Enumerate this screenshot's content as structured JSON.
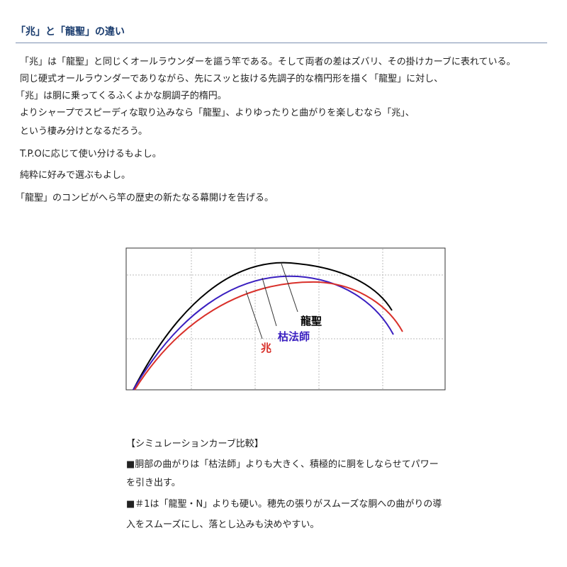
{
  "heading": "「兆」と「龍聖」の違い",
  "paragraphs": [
    "「兆」は「龍聖」と同じくオールラウンダーを謳う竿である。そして両者の差はズバリ、その掛けカーブに表れている。",
    "同じ硬式オールラウンダーでありながら、先にスッと抜ける先調子的な楕円形を描く「龍聖」に対し、",
    "「兆」は胴に乗ってくるふくよかな胴調子的楕円。",
    "よりシャープでスピーディな取り込みなら「龍聖」、よりゆったりと曲がりを楽しむなら「兆」、",
    "という棲み分けとなるだろう。",
    "T.P.Oに応じて使い分けるもよし。",
    "純粋に好みで選ぶもよし。",
    "「龍聖」のコンビがへら竿の歴史の新たなる幕開けを告げる。"
  ],
  "diagram": {
    "labels": [
      "龍聖",
      "枯法師",
      "兆"
    ]
  },
  "notes": {
    "title": "【シミュレーションカーブ比較】",
    "lines": [
      "■胴部の曲がりは「枯法師」よりも大きく、積極的に胴をしならせてパワー",
      "を引き出す。",
      "■＃1は「龍聖・N」よりも硬い。穂先の張りがスムーズな胴への曲がりの導",
      "入をスムーズにし、落とし込みも決めやすい。"
    ]
  }
}
